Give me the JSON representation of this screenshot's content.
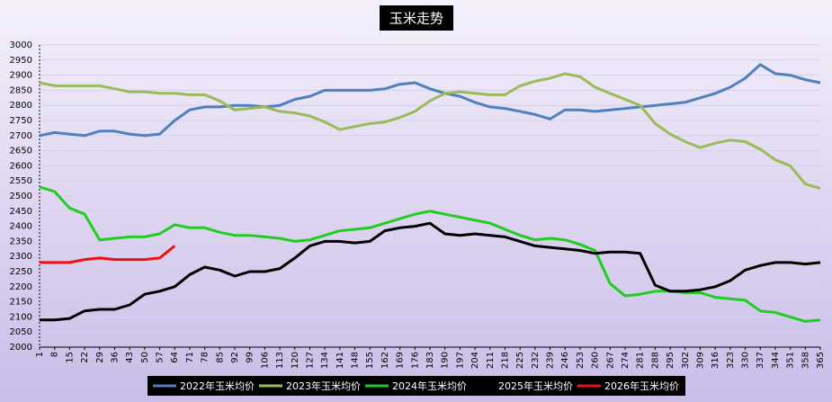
{
  "chart_data": {
    "type": "line",
    "title": "玉米走势",
    "x": [
      1,
      8,
      15,
      22,
      29,
      36,
      43,
      50,
      57,
      64,
      71,
      78,
      85,
      92,
      99,
      106,
      113,
      120,
      127,
      134,
      141,
      148,
      155,
      162,
      169,
      176,
      183,
      190,
      197,
      204,
      211,
      218,
      225,
      232,
      239,
      246,
      253,
      260,
      267,
      274,
      281,
      288,
      295,
      302,
      309,
      316,
      323,
      330,
      337,
      344,
      351,
      358,
      365
    ],
    "xlim": [
      1,
      365
    ],
    "xticks": [
      1,
      8,
      15,
      22,
      29,
      36,
      43,
      50,
      57,
      64,
      71,
      78,
      85,
      92,
      99,
      106,
      113,
      120,
      127,
      134,
      141,
      148,
      155,
      162,
      169,
      176,
      183,
      190,
      197,
      204,
      211,
      218,
      225,
      232,
      239,
      246,
      253,
      260,
      267,
      274,
      281,
      288,
      295,
      302,
      309,
      316,
      323,
      330,
      337,
      344,
      351,
      358,
      365
    ],
    "ylim": [
      2000,
      3000
    ],
    "yticks": [
      2000,
      2050,
      2100,
      2150,
      2200,
      2250,
      2300,
      2350,
      2400,
      2450,
      2500,
      2550,
      2600,
      2650,
      2700,
      2750,
      2800,
      2850,
      2900,
      2950,
      3000
    ],
    "grid": true,
    "series": [
      {
        "name": "2022年玉米均价",
        "color": "#4f81bd",
        "values": [
          2700,
          2710,
          2705,
          2700,
          2715,
          2715,
          2705,
          2700,
          2705,
          2750,
          2785,
          2795,
          2795,
          2800,
          2800,
          2795,
          2800,
          2820,
          2830,
          2850,
          2850,
          2850,
          2850,
          2855,
          2870,
          2875,
          2855,
          2840,
          2830,
          2810,
          2795,
          2790,
          2780,
          2770,
          2755,
          2785,
          2785,
          2780,
          2785,
          2790,
          2795,
          2800,
          2805,
          2810,
          2825,
          2840,
          2860,
          2890,
          2935,
          2905,
          2900,
          2885,
          2875
        ]
      },
      {
        "name": "2023年玉米均价",
        "color": "#9bbb59",
        "values": [
          2875,
          2865,
          2865,
          2865,
          2865,
          2855,
          2845,
          2845,
          2840,
          2840,
          2835,
          2835,
          2815,
          2785,
          2790,
          2795,
          2780,
          2775,
          2765,
          2745,
          2720,
          2730,
          2740,
          2745,
          2760,
          2780,
          2815,
          2840,
          2845,
          2840,
          2835,
          2835,
          2865,
          2880,
          2890,
          2905,
          2895,
          2860,
          2840,
          2820,
          2800,
          2740,
          2705,
          2680,
          2660,
          2675,
          2685,
          2680,
          2655,
          2620,
          2600,
          2540,
          2525
        ]
      },
      {
        "name": "2024年玉米均价",
        "color": "#22cc22",
        "values": [
          2530,
          2515,
          2460,
          2440,
          2355,
          2360,
          2365,
          2365,
          2375,
          2405,
          2395,
          2395,
          2380,
          2370,
          2370,
          2365,
          2360,
          2350,
          2355,
          2370,
          2385,
          2390,
          2395,
          2410,
          2425,
          2440,
          2450,
          2440,
          2430,
          2420,
          2410,
          2390,
          2370,
          2355,
          2360,
          2355,
          2340,
          2320,
          2210,
          2170,
          2175,
          2185,
          2185,
          2180,
          2180,
          2165,
          2160,
          2155,
          2120,
          2115,
          2100,
          2085,
          2090
        ]
      },
      {
        "name": "2025年玉米均价",
        "color": "#000000",
        "values": [
          2090,
          2090,
          2095,
          2120,
          2125,
          2125,
          2140,
          2175,
          2185,
          2200,
          2240,
          2265,
          2255,
          2235,
          2250,
          2250,
          2260,
          2295,
          2335,
          2350,
          2350,
          2345,
          2350,
          2385,
          2395,
          2400,
          2410,
          2375,
          2370,
          2375,
          2370,
          2365,
          2350,
          2335,
          2330,
          2325,
          2320,
          2310,
          2315,
          2315,
          2310,
          2205,
          2185,
          2185,
          2190,
          2200,
          2220,
          2255,
          2270,
          2280,
          2280,
          2275,
          2280
        ]
      },
      {
        "name": "2026年玉米均价",
        "color": "#ee1111",
        "values": [
          2280,
          2280,
          2280,
          2290,
          2295,
          2290,
          2290,
          2290,
          2295,
          2335,
          null,
          null,
          null,
          null,
          null,
          null,
          null,
          null,
          null,
          null,
          null,
          null,
          null,
          null,
          null,
          null,
          null,
          null,
          null,
          null,
          null,
          null,
          null,
          null,
          null,
          null,
          null,
          null,
          null,
          null,
          null,
          null,
          null,
          null,
          null,
          null,
          null,
          null,
          null,
          null,
          null,
          null,
          null
        ]
      }
    ]
  }
}
